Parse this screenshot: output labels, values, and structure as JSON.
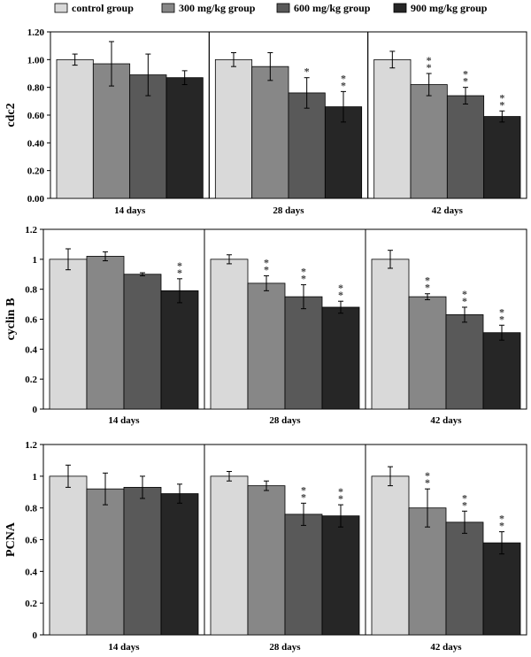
{
  "legend": {
    "items": [
      {
        "label": "control group",
        "color": "#d9d9d9"
      },
      {
        "label": "300 mg/kg group",
        "color": "#878787"
      },
      {
        "label": "600 mg/kg group",
        "color": "#595959"
      },
      {
        "label": "900 mg/kg group",
        "color": "#262626"
      }
    ]
  },
  "chart_data": [
    {
      "type": "bar",
      "ylabel": "cdc2",
      "ylim": [
        0,
        1.2
      ],
      "yticks": [
        "0.00",
        "0.20",
        "0.40",
        "0.60",
        "0.80",
        "1.00",
        "1.20"
      ],
      "categories": [
        "14 days",
        "28 days",
        "42 days"
      ],
      "series": [
        {
          "name": "control group",
          "values": [
            1.0,
            1.0,
            1.0
          ],
          "errors": [
            0.04,
            0.05,
            0.06
          ],
          "sig": [
            "",
            "",
            ""
          ]
        },
        {
          "name": "300 mg/kg group",
          "values": [
            0.97,
            0.95,
            0.82
          ],
          "errors": [
            0.16,
            0.1,
            0.08
          ],
          "sig": [
            "",
            "",
            "**"
          ]
        },
        {
          "name": "600 mg/kg group",
          "values": [
            0.89,
            0.76,
            0.74
          ],
          "errors": [
            0.15,
            0.11,
            0.06
          ],
          "sig": [
            "",
            "*",
            "**"
          ]
        },
        {
          "name": "900 mg/kg group",
          "values": [
            0.87,
            0.66,
            0.59
          ],
          "errors": [
            0.05,
            0.11,
            0.04
          ],
          "sig": [
            "",
            "**",
            "**"
          ]
        }
      ]
    },
    {
      "type": "bar",
      "ylabel": "cyclin B",
      "ylim": [
        0,
        1.2
      ],
      "yticks": [
        "0",
        "0.2",
        "0.4",
        "0.6",
        "0.8",
        "1",
        "1.2"
      ],
      "categories": [
        "14 days",
        "28 days",
        "42 days"
      ],
      "series": [
        {
          "name": "control group",
          "values": [
            1.0,
            1.0,
            1.0
          ],
          "errors": [
            0.07,
            0.03,
            0.06
          ],
          "sig": [
            "",
            "",
            ""
          ]
        },
        {
          "name": "300 mg/kg group",
          "values": [
            1.02,
            0.84,
            0.75
          ],
          "errors": [
            0.03,
            0.05,
            0.02
          ],
          "sig": [
            "",
            "**",
            "**"
          ]
        },
        {
          "name": "600 mg/kg group",
          "values": [
            0.9,
            0.75,
            0.63
          ],
          "errors": [
            0.01,
            0.08,
            0.05
          ],
          "sig": [
            "",
            "**",
            "**"
          ]
        },
        {
          "name": "900 mg/kg group",
          "values": [
            0.79,
            0.68,
            0.51
          ],
          "errors": [
            0.08,
            0.04,
            0.05
          ],
          "sig": [
            "**",
            "**",
            "**"
          ]
        }
      ]
    },
    {
      "type": "bar",
      "ylabel": "PCNA",
      "ylim": [
        0,
        1.2
      ],
      "yticks": [
        "0",
        "0.2",
        "0.4",
        "0.6",
        "0.8",
        "1",
        "1.2"
      ],
      "categories": [
        "14 days",
        "28 days",
        "42 days"
      ],
      "series": [
        {
          "name": "control group",
          "values": [
            1.0,
            1.0,
            1.0
          ],
          "errors": [
            0.07,
            0.03,
            0.06
          ],
          "sig": [
            "",
            "",
            ""
          ]
        },
        {
          "name": "300 mg/kg group",
          "values": [
            0.92,
            0.94,
            0.8
          ],
          "errors": [
            0.1,
            0.03,
            0.12
          ],
          "sig": [
            "",
            "",
            "**"
          ]
        },
        {
          "name": "600 mg/kg group",
          "values": [
            0.93,
            0.76,
            0.71
          ],
          "errors": [
            0.07,
            0.07,
            0.07
          ],
          "sig": [
            "",
            "**",
            "**"
          ]
        },
        {
          "name": "900 mg/kg group",
          "values": [
            0.89,
            0.75,
            0.58
          ],
          "errors": [
            0.06,
            0.07,
            0.07
          ],
          "sig": [
            "",
            "**",
            "**"
          ]
        }
      ]
    }
  ]
}
